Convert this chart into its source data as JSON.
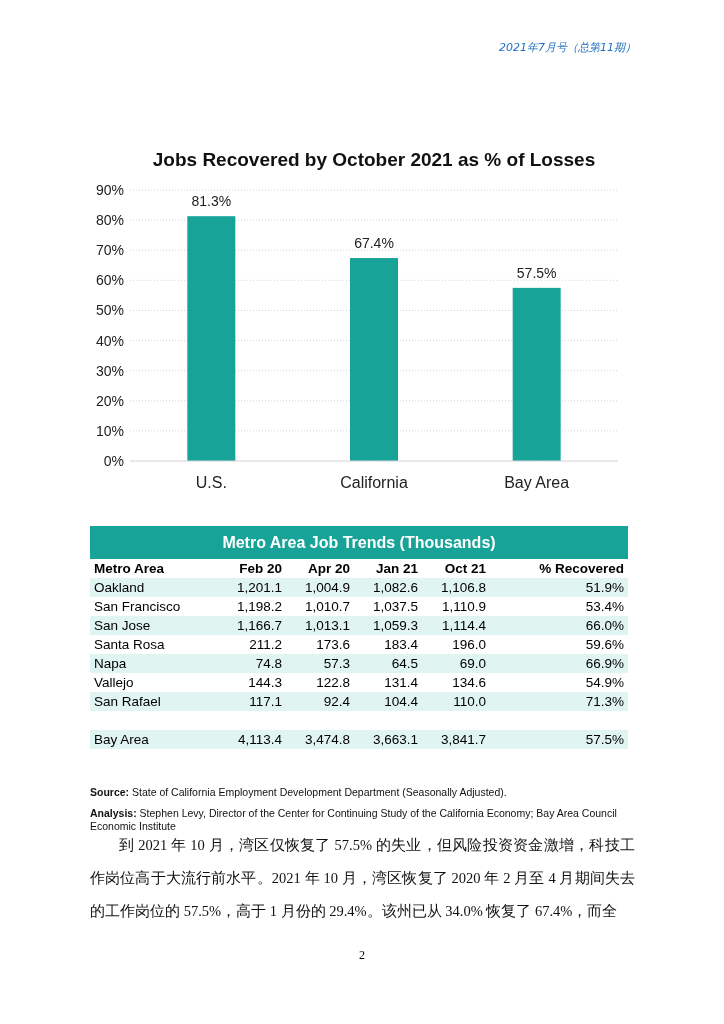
{
  "chart_data": [
    {
      "type": "bar",
      "title": "Jobs Recovered by October 2021 as % of Losses",
      "categories": [
        "U.S.",
        "California",
        "Bay Area"
      ],
      "values": [
        81.3,
        67.4,
        57.5
      ],
      "color": "#17a398",
      "value_labels": [
        "81.3%",
        "67.4%",
        "57.5%"
      ],
      "ylim": [
        0,
        90
      ],
      "yticks": [
        {
          "value": 0,
          "label": "0%"
        },
        {
          "value": 10,
          "label": "10%"
        },
        {
          "value": 20,
          "label": "20%"
        },
        {
          "value": 30,
          "label": "30%"
        },
        {
          "value": 40,
          "label": "40%"
        },
        {
          "value": 50,
          "label": "50%"
        },
        {
          "value": 60,
          "label": "60%"
        },
        {
          "value": 70,
          "label": "70%"
        },
        {
          "value": 80,
          "label": "80%"
        },
        {
          "value": 90,
          "label": "90%"
        }
      ],
      "grid": "y",
      "annotations": [
        "2021年7月号（总第11期）"
      ]
    },
    {
      "type": "other",
      "title": "Metro Area Job Trends (Thousands)",
      "color": "#17a398",
      "ylabel": "Metro Area",
      "categories": [
        "Feb 20",
        "Apr 20",
        "Jan 21",
        "Oct 21",
        "% Recovered"
      ],
      "y_categories": [
        "Oakland",
        "San Francisco",
        "San Jose",
        "Santa Rosa",
        "Napa",
        "Vallejo",
        "San Rafael",
        null,
        "Bay Area"
      ],
      "cell_labels": [
        [
          "1,201.1",
          "1,004.9",
          "1,082.6",
          "1,106.8",
          "51.9%"
        ],
        [
          "1,198.2",
          "1,010.7",
          "1,037.5",
          "1,110.9",
          "53.4%"
        ],
        [
          "1,166.7",
          "1,013.1",
          "1,059.3",
          "1,114.4",
          "66.0%"
        ],
        [
          "211.2",
          "173.6",
          "183.4",
          "196.0",
          "59.6%"
        ],
        [
          "74.8",
          "57.3",
          "64.5",
          "69.0",
          "66.9%"
        ],
        [
          "144.3",
          "122.8",
          "131.4",
          "134.6",
          "54.9%"
        ],
        [
          "117.1",
          "92.4",
          "104.4",
          "110.0",
          "71.3%"
        ],
        [
          null,
          null,
          null,
          null,
          null
        ],
        [
          "4,113.4",
          "3,474.8",
          "3,663.1",
          "3,841.7",
          "57.5%"
        ]
      ],
      "annotations": [
        "Source: State of California Employment Development Department (Seasonally Adjusted).",
        "Analysis: Stephen Levy, Director of the Center for Continuing Study of the California Economy; Bay Area Council Economic Institute",
        "到 2021 年 10 月，湾区仅恢复了 57.5% 的失业，但风险投资资金激增，科技工作岗位高于大流行前水平。2021 年 10 月，湾区恢复了 2020 年 2 月至 4 月期间失去的工作岗位的 57.5%，高于 1 月份的 29.4%。该州已从 34.0% 恢复了 67.4%，而全",
        "2"
      ]
    }
  ]
}
